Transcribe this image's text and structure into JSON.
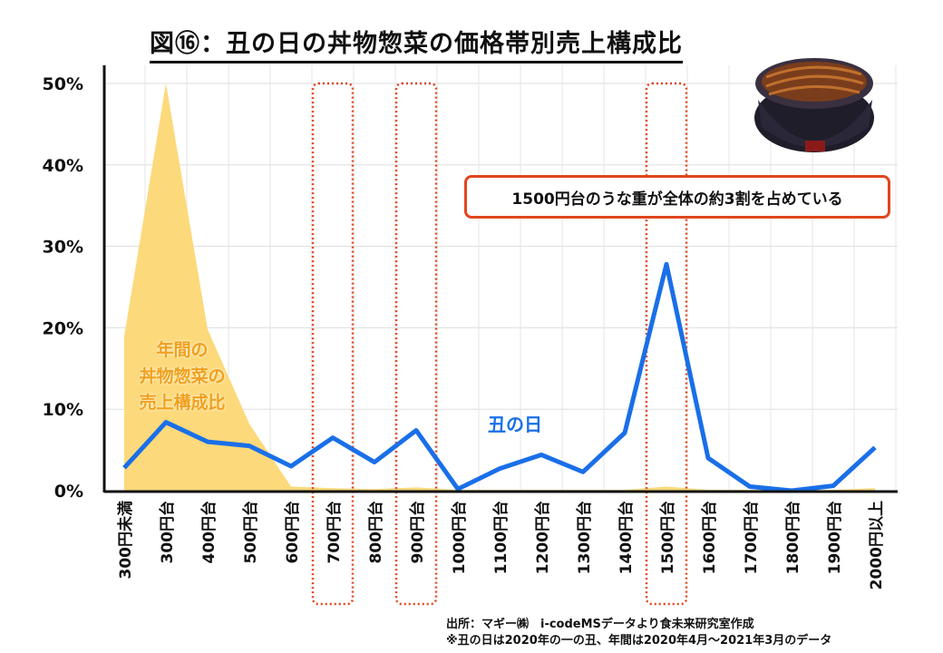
{
  "title": "図⑯：丑の日の丼物惣菜の価格帯別売上構成比",
  "callout": "1500円台のうな重が全体の約3割を占めている",
  "source_lines": [
    "出所：マギー㈱　i-codeMSデータより食未来研究室作成",
    "※丑の日は2020年の一の丑、年間は2020年4月～2021年3月のデータ"
  ],
  "colors": {
    "line": "#1a6fe8",
    "area": "#fcd97a",
    "highlight": "#e0461e"
  },
  "chart_data": {
    "type": "line",
    "title": "図⑯：丑の日の丼物惣菜の価格帯別売上構成比",
    "categories": [
      "300円未満",
      "300円台",
      "400円台",
      "500円台",
      "600円台",
      "700円台",
      "800円台",
      "900円台",
      "1000円台",
      "1100円台",
      "1200円台",
      "1300円台",
      "1400円台",
      "1500円台",
      "1600円台",
      "1700円台",
      "1800円台",
      "1900円台",
      "2000円以上"
    ],
    "ylim": [
      0,
      50
    ],
    "yticks": [
      0,
      10,
      20,
      30,
      40,
      50
    ],
    "ytick_labels": [
      "0%",
      "10%",
      "20%",
      "30%",
      "40%",
      "50%"
    ],
    "grid": true,
    "highlighted_categories": [
      "700円台",
      "900円台",
      "1500円台"
    ],
    "series": [
      {
        "name": "年間の丼物惣菜の売上構成比",
        "type": "area",
        "label": [
          "年間の",
          "丼物惣菜の",
          "売上構成比"
        ],
        "values": [
          19,
          50,
          19.8,
          8.2,
          0.5,
          0.3,
          0.2,
          0.4,
          0.1,
          0.1,
          0.1,
          0.1,
          0.1,
          0.5,
          0.1,
          0.1,
          0.1,
          0.1,
          0.3
        ]
      },
      {
        "name": "丑の日",
        "type": "line",
        "label": "丑の日",
        "values": [
          2.8,
          8.4,
          6.0,
          5.5,
          3.0,
          6.5,
          3.5,
          7.4,
          0.2,
          2.7,
          4.4,
          2.3,
          7.1,
          27.8,
          4.0,
          0.5,
          0.0,
          0.6,
          5.3
        ]
      }
    ]
  }
}
